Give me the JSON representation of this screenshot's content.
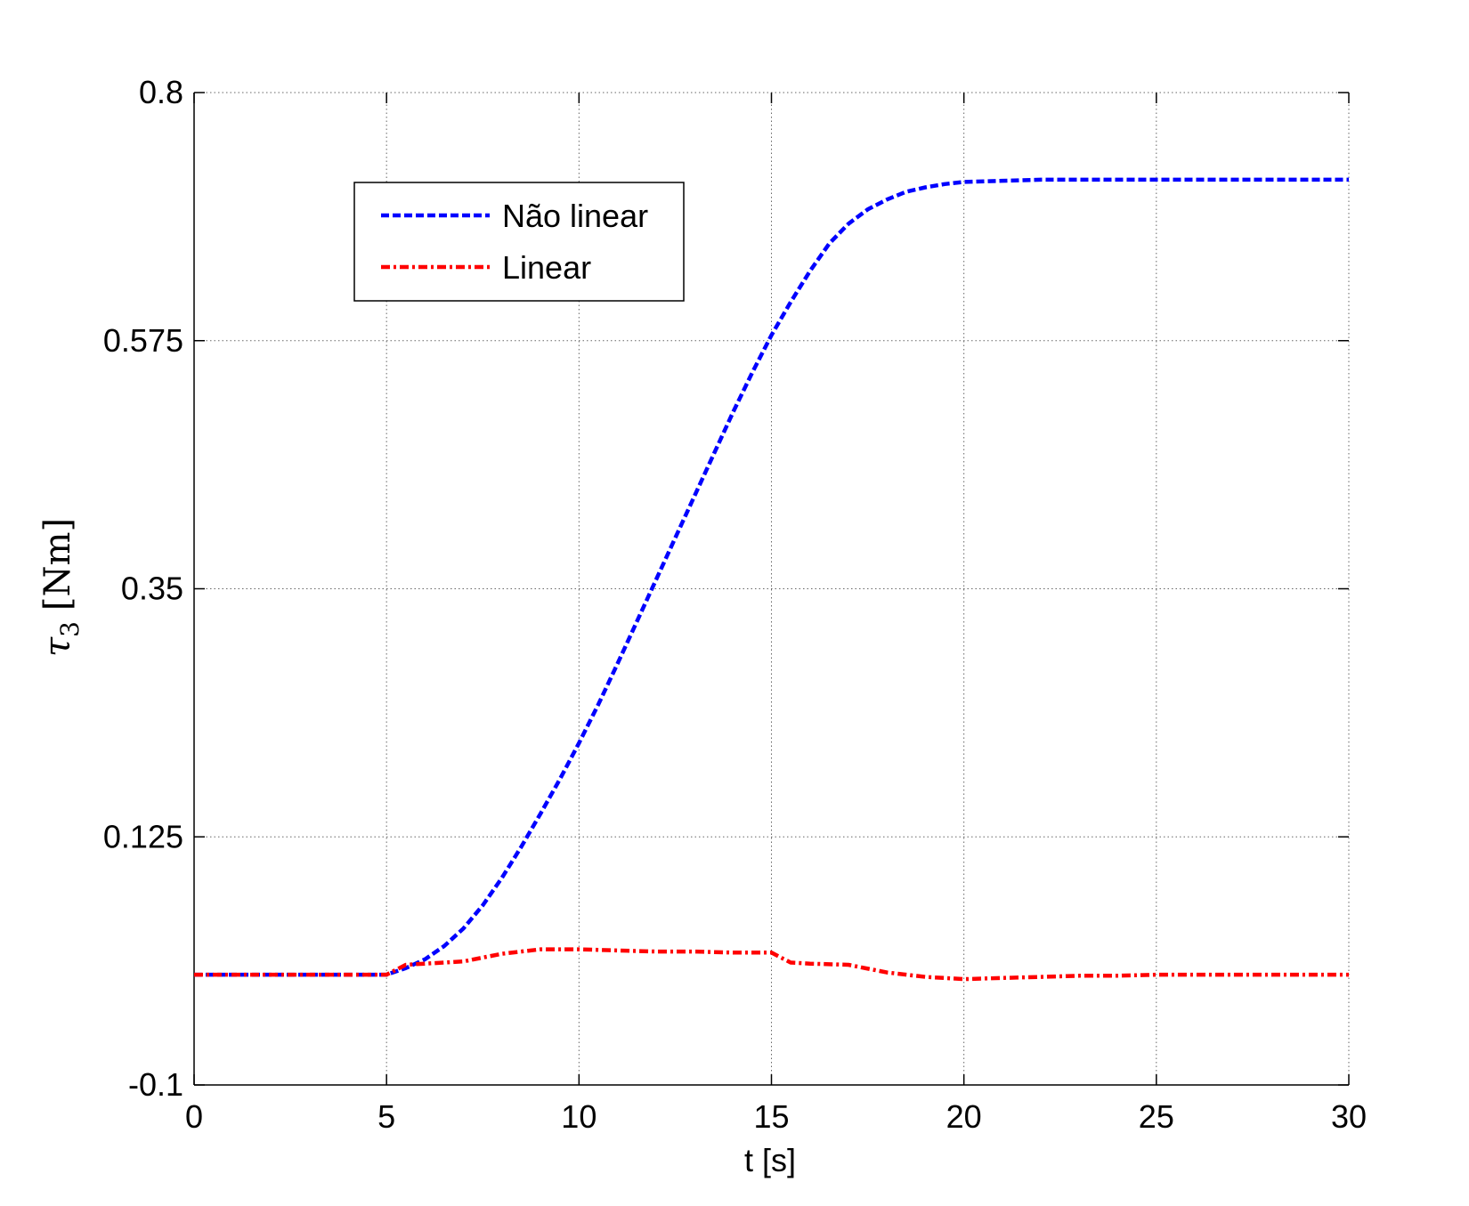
{
  "chart_data": {
    "type": "line",
    "xlabel": "t [s]",
    "ylabel": "τ3 [Nm]",
    "ylabel_symbol": "τ",
    "ylabel_subscript": "3",
    "ylabel_unit": "[Nm]",
    "xlim": [
      0,
      30
    ],
    "ylim": [
      -0.1,
      0.8
    ],
    "x_ticks": [
      0,
      5,
      10,
      15,
      20,
      25,
      30
    ],
    "x_tick_labels": [
      "0",
      "5",
      "10",
      "15",
      "20",
      "25",
      "30"
    ],
    "y_ticks": [
      -0.1,
      0.125,
      0.35,
      0.575,
      0.8
    ],
    "y_tick_labels": [
      "-0.1",
      "0.125",
      "0.35",
      "0.575",
      "0.8"
    ],
    "grid": true,
    "legend_position": "upper-left",
    "series": [
      {
        "name": "Não linear",
        "color": "#0000ff",
        "style": "dashed",
        "x": [
          0,
          5,
          5.5,
          6,
          6.5,
          7,
          7.5,
          8,
          8.5,
          9,
          9.5,
          10,
          10.5,
          11,
          11.5,
          12,
          12.5,
          13,
          13.5,
          14,
          14.5,
          15,
          15.5,
          16,
          16.5,
          17,
          17.5,
          18,
          18.5,
          19,
          19.5,
          20,
          21,
          22,
          23,
          24,
          25,
          26,
          27,
          28,
          29,
          30
        ],
        "y": [
          0.0,
          0.0,
          0.006,
          0.014,
          0.026,
          0.042,
          0.063,
          0.088,
          0.116,
          0.146,
          0.177,
          0.21,
          0.245,
          0.282,
          0.32,
          0.358,
          0.396,
          0.434,
          0.472,
          0.51,
          0.546,
          0.58,
          0.61,
          0.638,
          0.663,
          0.681,
          0.694,
          0.703,
          0.71,
          0.714,
          0.717,
          0.719,
          0.72,
          0.721,
          0.721,
          0.721,
          0.721,
          0.721,
          0.721,
          0.721,
          0.721,
          0.721
        ]
      },
      {
        "name": "Linear",
        "color": "#ff0000",
        "style": "dashdot",
        "x": [
          0,
          5,
          5.5,
          6,
          7,
          8,
          9,
          10,
          11,
          12,
          13,
          14,
          15,
          15.5,
          16,
          17,
          18,
          19,
          20,
          21,
          22,
          23,
          24,
          25,
          26,
          27,
          28,
          29,
          30
        ],
        "y": [
          0.0,
          0.0,
          0.009,
          0.01,
          0.012,
          0.019,
          0.023,
          0.023,
          0.022,
          0.021,
          0.021,
          0.02,
          0.02,
          0.011,
          0.01,
          0.009,
          0.002,
          -0.002,
          -0.004,
          -0.003,
          -0.002,
          -0.001,
          -0.001,
          0.0,
          0.0,
          0.0,
          0.0,
          0.0,
          0.0
        ]
      }
    ]
  }
}
